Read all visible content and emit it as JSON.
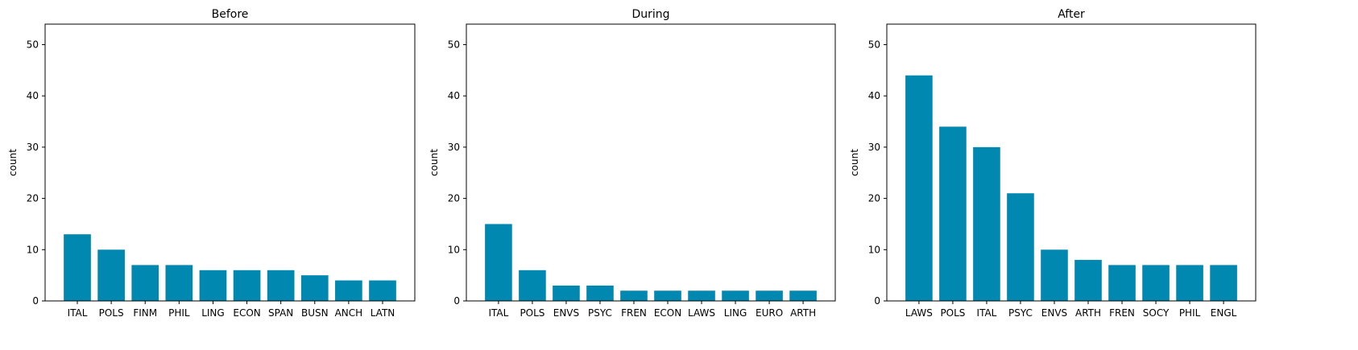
{
  "chart_data": [
    {
      "type": "bar",
      "title": "Before",
      "xlabel": "",
      "ylabel": "count",
      "ylim": [
        0,
        54
      ],
      "yticks": [
        0,
        10,
        20,
        30,
        40,
        50
      ],
      "grid": false,
      "categories": [
        "ITAL",
        "POLS",
        "FINM",
        "PHIL",
        "LING",
        "ECON",
        "SPAN",
        "BUSN",
        "ANCH",
        "LATN"
      ],
      "values": [
        13,
        10,
        7,
        7,
        6,
        6,
        6,
        5,
        4,
        4
      ]
    },
    {
      "type": "bar",
      "title": "During",
      "xlabel": "",
      "ylabel": "count",
      "ylim": [
        0,
        54
      ],
      "yticks": [
        0,
        10,
        20,
        30,
        40,
        50
      ],
      "grid": false,
      "categories": [
        "ITAL",
        "POLS",
        "ENVS",
        "PSYC",
        "FREN",
        "ECON",
        "LAWS",
        "LING",
        "EURO",
        "ARTH"
      ],
      "values": [
        15,
        6,
        3,
        3,
        2,
        2,
        2,
        2,
        2,
        2
      ]
    },
    {
      "type": "bar",
      "title": "After",
      "xlabel": "",
      "ylabel": "count",
      "ylim": [
        0,
        54
      ],
      "yticks": [
        0,
        10,
        20,
        30,
        40,
        50
      ],
      "grid": false,
      "categories": [
        "LAWS",
        "POLS",
        "ITAL",
        "PSYC",
        "ENVS",
        "ARTH",
        "FREN",
        "SOCY",
        "PHIL",
        "ENGL"
      ],
      "values": [
        44,
        34,
        30,
        21,
        10,
        8,
        7,
        7,
        7,
        7
      ]
    }
  ],
  "colors": {
    "bar": "#0088b0",
    "axis": "#000000"
  }
}
